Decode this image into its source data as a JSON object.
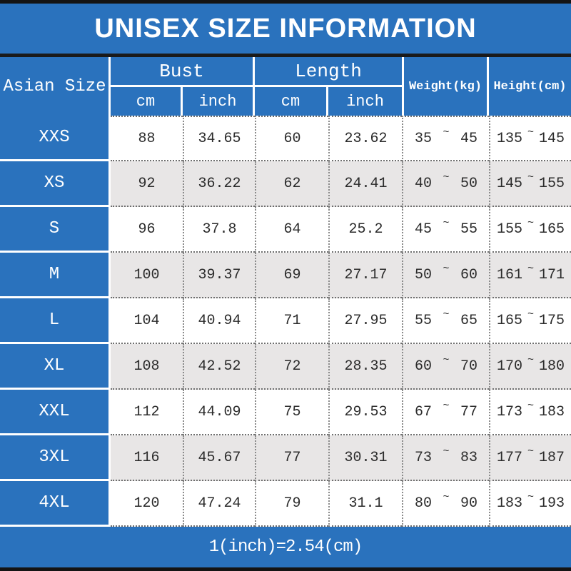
{
  "title": "UNISEX SIZE INFORMATION",
  "table": {
    "corner_header": "Asian Size",
    "bust_header": "Bust",
    "length_header": "Length",
    "weight_header": "Weight(kg)",
    "height_header": "Height(cm)",
    "bust_cm_unit": "cm",
    "bust_inch_unit": "inch",
    "length_cm_unit": "cm",
    "length_inch_unit": "inch",
    "tilde": "~",
    "rows": [
      {
        "size": "XXS",
        "bust_cm": "88",
        "bust_inch": "34.65",
        "length_cm": "60",
        "length_inch": "23.62",
        "weight_min": "35",
        "weight_max": "45",
        "height_min": "135",
        "height_max": "145"
      },
      {
        "size": "XS",
        "bust_cm": "92",
        "bust_inch": "36.22",
        "length_cm": "62",
        "length_inch": "24.41",
        "weight_min": "40",
        "weight_max": "50",
        "height_min": "145",
        "height_max": "155"
      },
      {
        "size": "S",
        "bust_cm": "96",
        "bust_inch": "37.8",
        "length_cm": "64",
        "length_inch": "25.2",
        "weight_min": "45",
        "weight_max": "55",
        "height_min": "155",
        "height_max": "165"
      },
      {
        "size": "M",
        "bust_cm": "100",
        "bust_inch": "39.37",
        "length_cm": "69",
        "length_inch": "27.17",
        "weight_min": "50",
        "weight_max": "60",
        "height_min": "161",
        "height_max": "171"
      },
      {
        "size": "L",
        "bust_cm": "104",
        "bust_inch": "40.94",
        "length_cm": "71",
        "length_inch": "27.95",
        "weight_min": "55",
        "weight_max": "65",
        "height_min": "165",
        "height_max": "175"
      },
      {
        "size": "XL",
        "bust_cm": "108",
        "bust_inch": "42.52",
        "length_cm": "72",
        "length_inch": "28.35",
        "weight_min": "60",
        "weight_max": "70",
        "height_min": "170",
        "height_max": "180"
      },
      {
        "size": "XXL",
        "bust_cm": "112",
        "bust_inch": "44.09",
        "length_cm": "75",
        "length_inch": "29.53",
        "weight_min": "67",
        "weight_max": "77",
        "height_min": "173",
        "height_max": "183"
      },
      {
        "size": "3XL",
        "bust_cm": "116",
        "bust_inch": "45.67",
        "length_cm": "77",
        "length_inch": "30.31",
        "weight_min": "73",
        "weight_max": "83",
        "height_min": "177",
        "height_max": "187"
      },
      {
        "size": "4XL",
        "bust_cm": "120",
        "bust_inch": "47.24",
        "length_cm": "79",
        "length_inch": "31.1",
        "weight_min": "80",
        "weight_max": "90",
        "height_min": "183",
        "height_max": "193"
      }
    ]
  },
  "footer": {
    "conversion_note": "1(inch)=2.54(cm)"
  },
  "colors": {
    "blue": "#2a72bd",
    "alt_row_gray": "#e8e6e6",
    "black_bar": "#141414",
    "text_dark": "#2b2b2b",
    "white": "#ffffff"
  }
}
